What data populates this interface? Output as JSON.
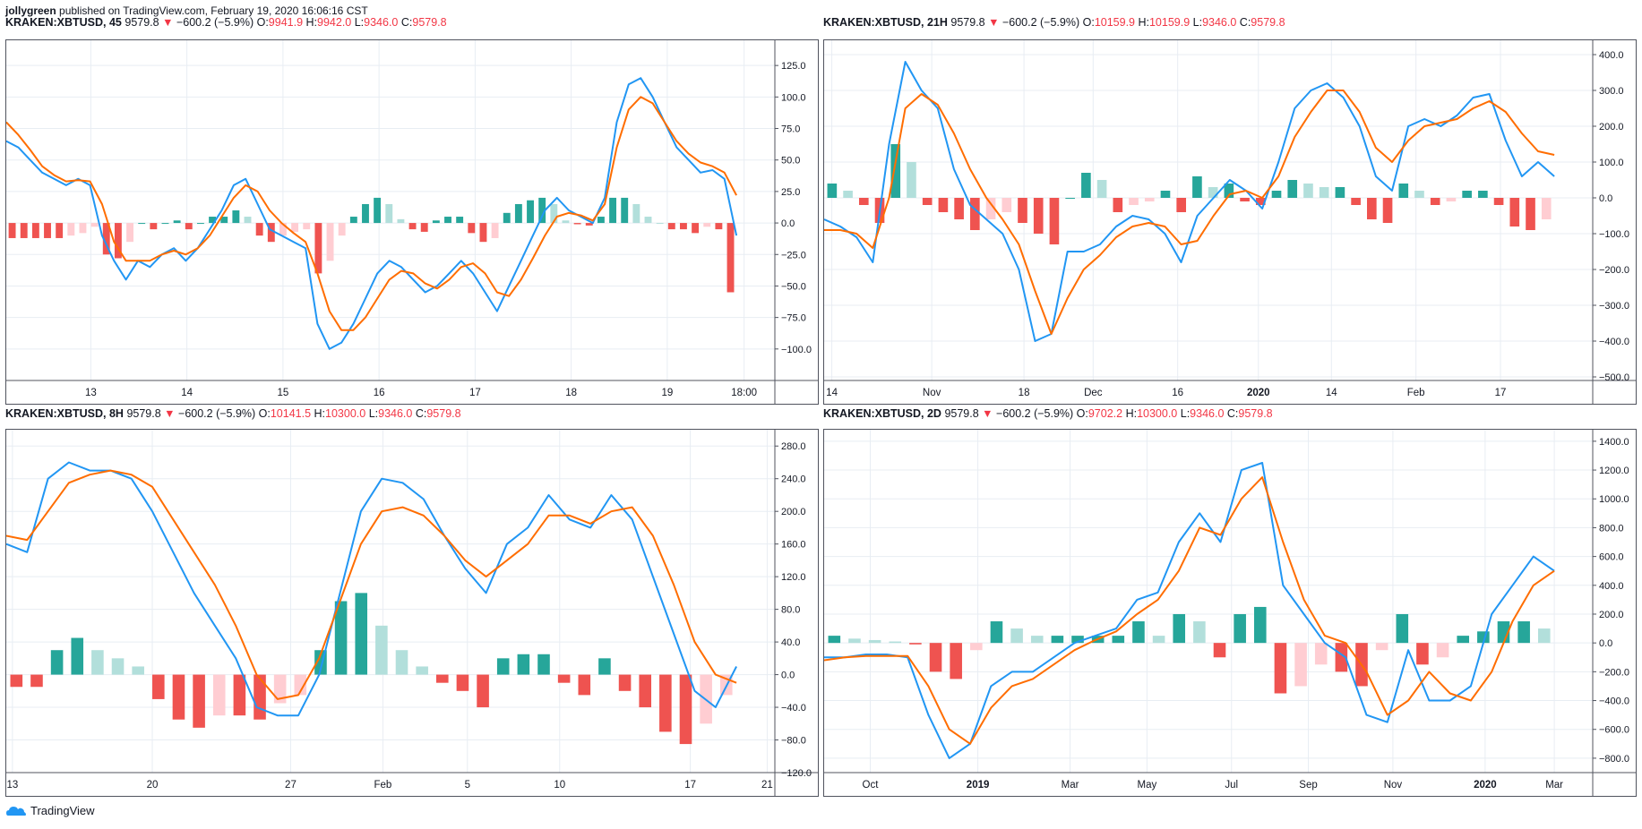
{
  "header": {
    "author": "jollygreen",
    "published": "published on TradingView.com, February 19, 2020 16:06:16 CST"
  },
  "footer": {
    "brand": "TradingView"
  },
  "colors": {
    "macd": "#2196f3",
    "signal": "#ff6d00",
    "hist_pos_strong": "#26a69a",
    "hist_pos_weak": "#b2dfdb",
    "hist_neg_strong": "#ef5350",
    "hist_neg_weak": "#ffcdd2",
    "red_text": "#f23645"
  },
  "panels": [
    {
      "symbol": "KRAKEN:XBTUSD, 45",
      "price": "9579.8",
      "change": "−600.2 (−5.9%)",
      "o": "9941.9",
      "h": "9942.0",
      "l": "9346.0",
      "c": "9579.8"
    },
    {
      "symbol": "KRAKEN:XBTUSD, 21H",
      "price": "9579.8",
      "change": "−600.2 (−5.9%)",
      "o": "10159.9",
      "h": "10159.9",
      "l": "9346.0",
      "c": "9579.8"
    },
    {
      "symbol": "KRAKEN:XBTUSD, 8H",
      "price": "9579.8",
      "change": "−600.2 (−5.9%)",
      "o": "10141.5",
      "h": "10300.0",
      "l": "9346.0",
      "c": "9579.8"
    },
    {
      "symbol": "KRAKEN:XBTUSD, 2D",
      "price": "9579.8",
      "change": "−600.2 (−5.9%)",
      "o": "9702.2",
      "h": "10300.0",
      "l": "9346.0",
      "c": "9579.8"
    }
  ],
  "chart_data": [
    {
      "type": "line",
      "ylim": [
        -125,
        145
      ],
      "y_ticks": [
        125,
        100,
        75,
        50,
        25,
        0,
        -25,
        -50,
        -75,
        -100
      ],
      "y_tick_labels": [
        "125.0",
        "100.0",
        "75.0",
        "50.0",
        "25.0",
        "0.0",
        "−25.0",
        "−50.0",
        "−75.0",
        "−100.0"
      ],
      "x_ticks": [
        "13",
        "14",
        "15",
        "16",
        "17",
        "18",
        "19",
        "18:00"
      ],
      "x_tick_pos": [
        0.11,
        0.235,
        0.36,
        0.485,
        0.61,
        0.735,
        0.86,
        0.96
      ],
      "series": [
        {
          "values": [
            65,
            60,
            50,
            40,
            35,
            30,
            35,
            30,
            -10,
            -30,
            -45,
            -30,
            -35,
            -25,
            -20,
            -30,
            -20,
            -5,
            10,
            30,
            35,
            15,
            -5,
            -10,
            -15,
            -20,
            -80,
            -100,
            -95,
            -80,
            -60,
            -40,
            -30,
            -35,
            -45,
            -55,
            -50,
            -40,
            -30,
            -40,
            -55,
            -70,
            -50,
            -30,
            -10,
            10,
            20,
            10,
            5,
            0,
            20,
            80,
            110,
            115,
            100,
            80,
            60,
            50,
            40,
            42,
            35,
            -10
          ]
        },
        {
          "values": [
            80,
            70,
            58,
            45,
            38,
            33,
            34,
            33,
            15,
            -15,
            -30,
            -30,
            -30,
            -25,
            -22,
            -25,
            -20,
            -10,
            5,
            20,
            30,
            25,
            10,
            0,
            -8,
            -15,
            -40,
            -70,
            -85,
            -85,
            -75,
            -60,
            -45,
            -38,
            -40,
            -48,
            -52,
            -45,
            -35,
            -32,
            -40,
            -55,
            -58,
            -45,
            -28,
            -10,
            5,
            8,
            6,
            2,
            15,
            60,
            90,
            100,
            95,
            80,
            65,
            55,
            48,
            45,
            40,
            22
          ]
        }
      ],
      "histogram": [
        -12,
        -12,
        -12,
        -12,
        -12,
        -10,
        -8,
        -3,
        -25,
        -28,
        -15,
        0,
        -5,
        0,
        2,
        -5,
        0,
        5,
        5,
        10,
        5,
        -10,
        -15,
        -10,
        -7,
        -5,
        -40,
        -30,
        -10,
        5,
        15,
        20,
        15,
        3,
        -5,
        -7,
        2,
        5,
        5,
        -8,
        -15,
        -12,
        8,
        15,
        18,
        20,
        15,
        2,
        -1,
        -2,
        5,
        20,
        20,
        15,
        5,
        0,
        -5,
        -5,
        -8,
        -3,
        -5,
        -55
      ]
    },
    {
      "type": "line",
      "ylim": [
        -510,
        440
      ],
      "y_ticks": [
        400,
        300,
        200,
        100,
        0,
        -100,
        -200,
        -300,
        -400,
        -500
      ],
      "y_tick_labels": [
        "400.0",
        "300.0",
        "200.0",
        "100.0",
        "0.0",
        "−100.0",
        "−200.0",
        "−300.0",
        "−400.0",
        "−500.0"
      ],
      "x_ticks": [
        "14",
        "Nov",
        "18",
        "Dec",
        "16",
        "2020",
        "14",
        "Feb",
        "17"
      ],
      "x_tick_pos": [
        0.01,
        0.14,
        0.26,
        0.35,
        0.46,
        0.565,
        0.66,
        0.77,
        0.88
      ],
      "series": [
        {
          "values": [
            -60,
            -80,
            -110,
            -180,
            150,
            380,
            300,
            250,
            80,
            -20,
            -60,
            -100,
            -200,
            -400,
            -380,
            -150,
            -150,
            -130,
            -80,
            -50,
            -60,
            -100,
            -180,
            -50,
            0,
            50,
            20,
            -30,
            100,
            250,
            300,
            320,
            280,
            200,
            60,
            20,
            200,
            220,
            200,
            230,
            280,
            290,
            160,
            60,
            100,
            60
          ]
        },
        {
          "values": [
            -90,
            -90,
            -100,
            -140,
            0,
            250,
            290,
            260,
            180,
            80,
            0,
            -60,
            -130,
            -260,
            -380,
            -280,
            -200,
            -160,
            -110,
            -80,
            -70,
            -80,
            -130,
            -120,
            -50,
            10,
            20,
            0,
            60,
            170,
            240,
            300,
            300,
            240,
            140,
            100,
            160,
            200,
            210,
            220,
            250,
            270,
            240,
            180,
            130,
            120
          ]
        }
      ],
      "histogram": [
        40,
        20,
        -20,
        -70,
        150,
        100,
        -20,
        -40,
        -60,
        -90,
        -60,
        -40,
        -70,
        -100,
        -130,
        0,
        70,
        50,
        -40,
        -20,
        -10,
        20,
        -40,
        60,
        30,
        40,
        -10,
        -20,
        20,
        50,
        40,
        30,
        30,
        -20,
        -60,
        -70,
        40,
        20,
        -20,
        -10,
        20,
        20,
        -20,
        -80,
        -90,
        -60
      ]
    },
    {
      "type": "line",
      "ylim": [
        -120,
        300
      ],
      "y_ticks": [
        280,
        240,
        200,
        160,
        120,
        80,
        40,
        0,
        -40,
        -80,
        -120
      ],
      "y_tick_labels": [
        "280.0",
        "240.0",
        "200.0",
        "160.0",
        "120.0",
        "80.0",
        "40.0",
        "0.0",
        "−40.0",
        "−80.0",
        "−120.0"
      ],
      "x_ticks": [
        "13",
        "20",
        "27",
        "Feb",
        "5",
        "10",
        "17",
        "21"
      ],
      "x_tick_pos": [
        0.008,
        0.19,
        0.37,
        0.49,
        0.6,
        0.72,
        0.89,
        0.99
      ],
      "series": [
        {
          "values": [
            160,
            150,
            240,
            260,
            250,
            250,
            240,
            200,
            150,
            100,
            60,
            20,
            -40,
            -50,
            -50,
            0,
            100,
            200,
            240,
            235,
            215,
            170,
            130,
            100,
            160,
            180,
            220,
            190,
            180,
            220,
            190,
            120,
            50,
            -20,
            -40,
            10
          ]
        },
        {
          "values": [
            170,
            165,
            200,
            235,
            245,
            250,
            245,
            230,
            190,
            150,
            110,
            60,
            0,
            -30,
            -25,
            20,
            90,
            160,
            200,
            205,
            195,
            170,
            140,
            120,
            140,
            160,
            195,
            195,
            185,
            200,
            205,
            170,
            110,
            40,
            0,
            -10
          ]
        }
      ],
      "histogram": [
        -15,
        -15,
        30,
        45,
        30,
        20,
        10,
        -30,
        -55,
        -65,
        -50,
        -50,
        -55,
        -35,
        -25,
        30,
        90,
        100,
        60,
        30,
        10,
        -10,
        -20,
        -40,
        20,
        25,
        25,
        -10,
        -25,
        20,
        -20,
        -40,
        -70,
        -85,
        -60,
        -25
      ]
    },
    {
      "type": "line",
      "ylim": [
        -900,
        1480
      ],
      "y_ticks": [
        1400,
        1200,
        1000,
        800,
        600,
        400,
        200,
        0,
        -200,
        -400,
        -600,
        -800
      ],
      "y_tick_labels": [
        "1400.0",
        "1200.0",
        "1000.0",
        "800.0",
        "600.0",
        "400.0",
        "200.0",
        "0.0",
        "−200.0",
        "−400.0",
        "−600.0",
        "−800.0"
      ],
      "x_ticks": [
        "Oct",
        "2019",
        "Mar",
        "May",
        "Jul",
        "Sep",
        "Nov",
        "2020",
        "Mar"
      ],
      "x_tick_pos": [
        0.06,
        0.2,
        0.32,
        0.42,
        0.53,
        0.63,
        0.74,
        0.86,
        0.95
      ],
      "series": [
        {
          "values": [
            -100,
            -100,
            -80,
            -80,
            -100,
            -500,
            -800,
            -700,
            -300,
            -200,
            -200,
            -100,
            0,
            50,
            100,
            300,
            350,
            700,
            900,
            700,
            1200,
            1250,
            400,
            200,
            0,
            -100,
            -500,
            -550,
            -50,
            -400,
            -400,
            -300,
            200,
            400,
            600,
            500
          ]
        },
        {
          "values": [
            -120,
            -100,
            -90,
            -90,
            -90,
            -300,
            -600,
            -700,
            -450,
            -300,
            -250,
            -150,
            -50,
            20,
            80,
            200,
            300,
            500,
            800,
            750,
            1000,
            1150,
            700,
            300,
            50,
            0,
            -200,
            -500,
            -400,
            -200,
            -350,
            -400,
            -200,
            150,
            400,
            500
          ]
        }
      ],
      "histogram": [
        50,
        30,
        20,
        10,
        -10,
        -200,
        -250,
        -50,
        150,
        100,
        50,
        50,
        50,
        50,
        50,
        150,
        50,
        200,
        150,
        -100,
        200,
        250,
        -350,
        -300,
        -150,
        -200,
        -300,
        -50,
        200,
        -150,
        -100,
        50,
        80,
        150,
        150,
        100
      ]
    }
  ]
}
